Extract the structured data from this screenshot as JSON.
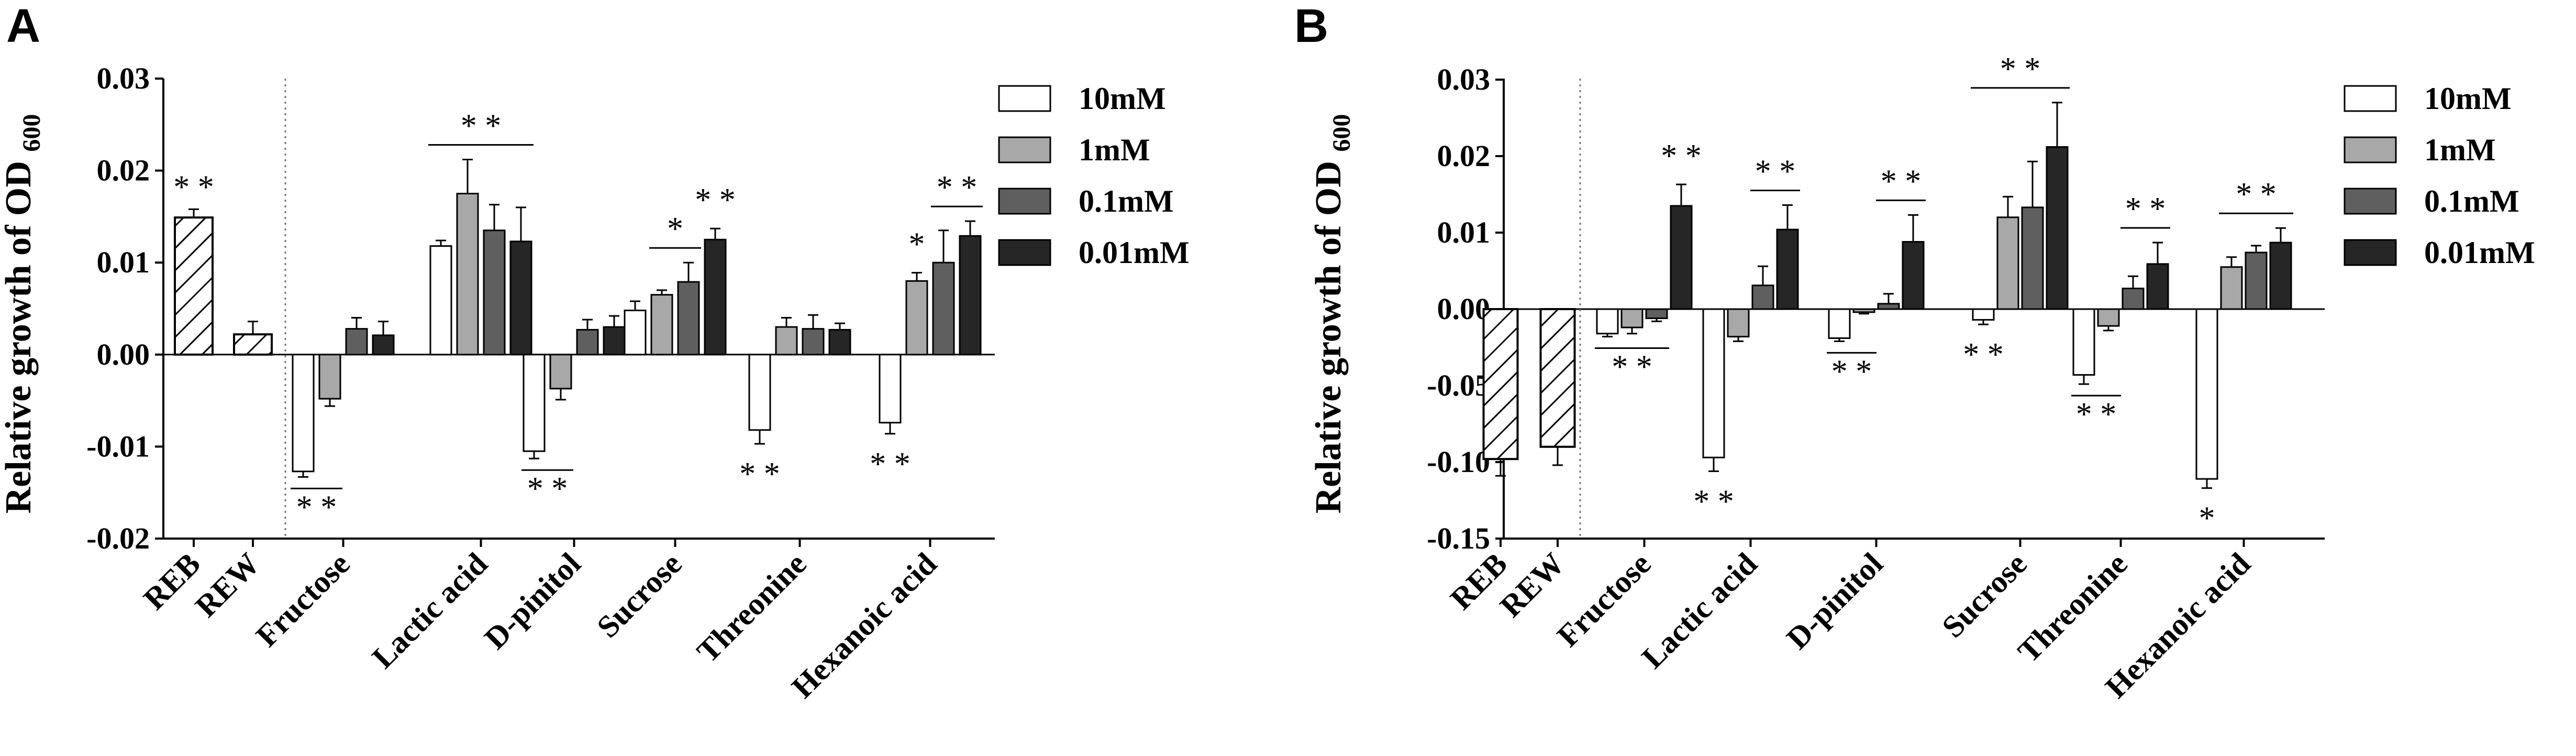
{
  "legend": {
    "series": [
      "10mM",
      "1mM",
      "0.1mM",
      "0.01mM"
    ],
    "colors": [
      "#ffffff",
      "#a8a8a8",
      "#5f5f5f",
      "#262626"
    ],
    "control_fill": "hatched"
  },
  "chart_data": [
    {
      "panel": "A",
      "type": "bar",
      "ylabel": "Relative growth of OD",
      "ylabel_sub": "600",
      "ylim": [
        -0.02,
        0.03
      ],
      "yticks": [
        -0.02,
        -0.01,
        0.0,
        0.01,
        0.02,
        0.03
      ],
      "ytick_labels": [
        "-0.02",
        "-0.01",
        "0.00",
        "0.01",
        "0.02",
        "0.03"
      ],
      "controls": [
        {
          "name": "REB",
          "value": 0.0149,
          "err": 0.0009,
          "hatched": true,
          "annotation": "* *"
        },
        {
          "name": "REW",
          "value": 0.0022,
          "err": 0.0014,
          "hatched": true,
          "annotation": ""
        }
      ],
      "categories": [
        "Fructose",
        "Lactic acid",
        "D-pinitol",
        "Sucrose",
        "Threonine",
        "Hexanoic acid"
      ],
      "series": [
        {
          "name": "10mM",
          "values": [
            -0.0127,
            0.0118,
            -0.0105,
            0.0048,
            -0.0082,
            -0.0074
          ],
          "errors": [
            0.0006,
            0.0006,
            0.0008,
            0.001,
            0.0015,
            0.0012
          ]
        },
        {
          "name": "1mM",
          "values": [
            -0.0048,
            0.0175,
            -0.0037,
            0.0065,
            0.003,
            0.008
          ],
          "errors": [
            0.0008,
            0.0037,
            0.0012,
            0.0005,
            0.001,
            0.0009
          ]
        },
        {
          "name": "0.1mM",
          "values": [
            0.0028,
            0.0135,
            0.0027,
            0.0079,
            0.0028,
            0.01
          ],
          "errors": [
            0.0012,
            0.0028,
            0.0011,
            0.0021,
            0.0015,
            0.0035
          ]
        },
        {
          "name": "0.01mM",
          "values": [
            0.0021,
            0.0123,
            0.003,
            0.0125,
            0.0027,
            0.0129
          ],
          "errors": [
            0.0015,
            0.0037,
            0.0012,
            0.0012,
            0.0007,
            0.0016
          ]
        }
      ],
      "significance": [
        {
          "category": 0,
          "bars": [
            0,
            1
          ],
          "side": "below",
          "label": "* *"
        },
        {
          "category": 1,
          "bars": [
            0,
            3
          ],
          "side": "above",
          "label": "* *"
        },
        {
          "category": 2,
          "bars": [
            0,
            1
          ],
          "side": "below",
          "label": "* *"
        },
        {
          "category": 3,
          "bars": [
            1,
            2
          ],
          "side": "above",
          "label": "*"
        },
        {
          "category": 3,
          "bars": [
            3,
            3
          ],
          "side": "above",
          "label": "* *",
          "line": false
        },
        {
          "category": 4,
          "bars": [
            0,
            0
          ],
          "side": "below",
          "label": "* *",
          "line": false
        },
        {
          "category": 5,
          "bars": [
            0,
            0
          ],
          "side": "below",
          "label": "* *",
          "line": false
        },
        {
          "category": 5,
          "bars": [
            1,
            1
          ],
          "side": "above",
          "label": "*",
          "line": false
        },
        {
          "category": 5,
          "bars": [
            2,
            3
          ],
          "side": "above",
          "label": "* *"
        }
      ]
    },
    {
      "panel": "B",
      "type": "bar",
      "ylabel": "Relative growth of OD",
      "ylabel_sub": "600",
      "ylim": [
        -0.15,
        0.03
      ],
      "axis_break_note": "piecewise scale: 0.00 to -0.05 and -0.05 to -0.15 spaced equally",
      "yticks": [
        -0.15,
        -0.1,
        -0.05,
        0.0,
        0.01,
        0.02,
        0.03
      ],
      "ytick_labels": [
        "-0.15",
        "-0.10",
        "-0.05",
        "0.00",
        "0.01",
        "0.02",
        "0.03"
      ],
      "controls": [
        {
          "name": "REB",
          "value": -0.098,
          "err": 0.011,
          "hatched": true,
          "annotation": ""
        },
        {
          "name": "REW",
          "value": -0.09,
          "err": 0.012,
          "hatched": true,
          "annotation": ""
        }
      ],
      "categories": [
        "Fructose",
        "Lactic acid",
        "D-pinitol",
        "Sucrose",
        "Threonine",
        "Hexanoic acid"
      ],
      "series": [
        {
          "name": "10mM",
          "values": [
            -0.016,
            -0.097,
            -0.019,
            -0.007,
            -0.043,
            -0.111
          ],
          "errors": [
            0.002,
            0.009,
            0.002,
            0.003,
            0.006,
            0.006
          ]
        },
        {
          "name": "1mM",
          "values": [
            -0.012,
            -0.018,
            -0.002,
            0.012,
            -0.011,
            0.0055
          ],
          "errors": [
            0.004,
            0.003,
            0.001,
            0.0027,
            0.003,
            0.0013
          ]
        },
        {
          "name": "0.1mM",
          "values": [
            -0.006,
            0.0031,
            0.0007,
            0.0133,
            0.0027,
            0.0074
          ],
          "errors": [
            0.002,
            0.0025,
            0.0013,
            0.006,
            0.0016,
            0.0009
          ]
        },
        {
          "name": "0.01mM",
          "values": [
            0.0135,
            0.0104,
            0.0088,
            0.0212,
            0.0059,
            0.0087
          ],
          "errors": [
            0.0028,
            0.0032,
            0.0035,
            0.0058,
            0.0028,
            0.0019
          ]
        }
      ],
      "significance": [
        {
          "category": 0,
          "bars": [
            0,
            2
          ],
          "side": "below",
          "label": "* *"
        },
        {
          "category": 0,
          "bars": [
            3,
            3
          ],
          "side": "above",
          "label": "* *",
          "line": false
        },
        {
          "category": 1,
          "bars": [
            0,
            0
          ],
          "side": "below",
          "label": "* *",
          "line": false
        },
        {
          "category": 1,
          "bars": [
            2,
            3
          ],
          "side": "above",
          "label": "* *"
        },
        {
          "category": 2,
          "bars": [
            0,
            1
          ],
          "side": "below",
          "label": "* *"
        },
        {
          "category": 2,
          "bars": [
            2,
            3
          ],
          "side": "above",
          "label": "* *"
        },
        {
          "category": 3,
          "bars": [
            0,
            0
          ],
          "side": "below",
          "label": "* *",
          "line": false
        },
        {
          "category": 3,
          "bars": [
            0,
            3
          ],
          "side": "above",
          "label": "* *"
        },
        {
          "category": 4,
          "bars": [
            0,
            1
          ],
          "side": "below",
          "label": "* *"
        },
        {
          "category": 4,
          "bars": [
            2,
            3
          ],
          "side": "above",
          "label": "* *"
        },
        {
          "category": 5,
          "bars": [
            0,
            0
          ],
          "side": "below",
          "label": "*",
          "line": false
        },
        {
          "category": 5,
          "bars": [
            1,
            3
          ],
          "side": "above",
          "label": "* *"
        }
      ]
    }
  ]
}
